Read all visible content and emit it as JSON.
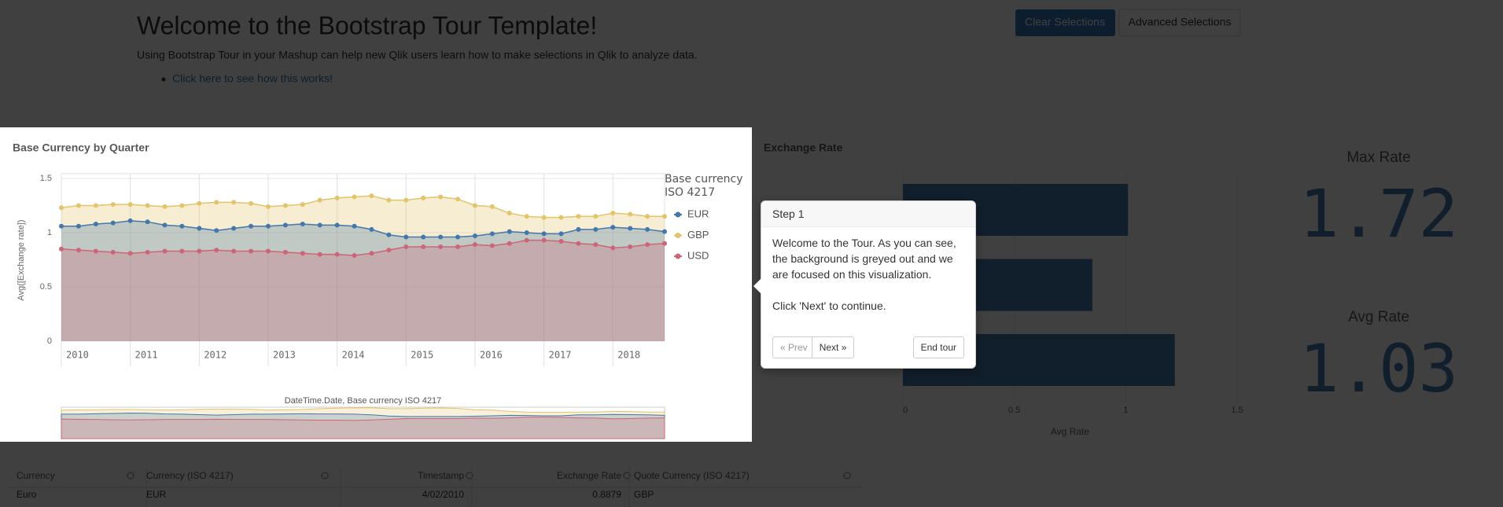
{
  "header": {
    "title": "Welcome to the Bootstrap Tour Template!",
    "intro": "Using Bootstrap Tour in your Mashup can help new Qlik users learn how to make selections in Qlik to analyze data.",
    "link": "Click here to see how this works!"
  },
  "buttons": [
    "Clear Selections",
    "Advanced Selections"
  ],
  "chart_data": [
    {
      "type": "area",
      "title": "Base Currency by Quarter",
      "y_label": "Avg([Exchange rate])",
      "legend_title": "Base currency ISO 4217",
      "navigator_label": "DateTime.Date, Base currency ISO 4217",
      "categories": [
        "2010",
        null,
        null,
        null,
        "2011",
        null,
        null,
        null,
        "2012",
        null,
        null,
        null,
        "2013",
        null,
        null,
        null,
        "2014",
        null,
        null,
        null,
        "2015",
        null,
        null,
        null,
        "2016",
        null,
        null,
        null,
        "2017",
        null,
        null,
        null,
        "2018",
        null,
        null,
        null
      ],
      "series": [
        {
          "name": "GBP",
          "color": "#e2c46a",
          "values": [
            1.23,
            1.25,
            1.25,
            1.26,
            1.26,
            1.25,
            1.24,
            1.25,
            1.27,
            1.28,
            1.28,
            1.27,
            1.24,
            1.25,
            1.26,
            1.3,
            1.32,
            1.33,
            1.34,
            1.3,
            1.3,
            1.32,
            1.33,
            1.31,
            1.25,
            1.24,
            1.18,
            1.15,
            1.14,
            1.14,
            1.15,
            1.15,
            1.18,
            1.17,
            1.15,
            1.15
          ]
        },
        {
          "name": "EUR",
          "color": "#4477aa",
          "values": [
            1.06,
            1.06,
            1.08,
            1.09,
            1.11,
            1.1,
            1.07,
            1.06,
            1.04,
            1.02,
            1.04,
            1.06,
            1.06,
            1.07,
            1.08,
            1.07,
            1.07,
            1.06,
            1.03,
            0.98,
            0.96,
            0.96,
            0.96,
            0.96,
            0.97,
            0.99,
            1.01,
            1.0,
            0.99,
            0.99,
            1.03,
            1.03,
            1.05,
            1.04,
            1.03,
            1.01
          ]
        },
        {
          "name": "USD",
          "color": "#cc6677",
          "values": [
            0.85,
            0.84,
            0.83,
            0.82,
            0.81,
            0.82,
            0.83,
            0.83,
            0.83,
            0.84,
            0.83,
            0.83,
            0.83,
            0.82,
            0.81,
            0.8,
            0.8,
            0.79,
            0.81,
            0.84,
            0.87,
            0.87,
            0.87,
            0.87,
            0.89,
            0.88,
            0.9,
            0.93,
            0.93,
            0.92,
            0.9,
            0.89,
            0.86,
            0.87,
            0.89,
            0.9
          ]
        }
      ],
      "legend_order": [
        1,
        0,
        2
      ],
      "ylim": [
        0,
        1.5
      ],
      "yticks": [
        0,
        0.5,
        1,
        1.5
      ],
      "grid": true
    },
    {
      "type": "hbar",
      "title": "Exchange Rate",
      "x_label": "Avg Rate",
      "color": "#4477aa",
      "values": [
        1.01,
        0.85,
        1.22
      ],
      "xlim": [
        0,
        1.5
      ],
      "xticks": [
        0,
        0.5,
        1,
        1.5
      ],
      "grid": true
    }
  ],
  "kpis": [
    {
      "label": "Max Rate",
      "value": 1.72
    },
    {
      "label": "Avg Rate",
      "value": 1.03
    }
  ],
  "tour": {
    "step": "Step 1",
    "text": "Welcome to the Tour. As you can see, the background is greyed out and we are focused on this visualization.",
    "hint": "Click 'Next' to continue.",
    "prev": "« Prev",
    "next": "Next »",
    "end": "End tour"
  },
  "table": {
    "columns": [
      "Currency",
      "Currency (ISO 4217)",
      "Timestamp",
      "Exchange Rate",
      "Quote Currency (ISO 4217)"
    ],
    "rows": [
      [
        "Euro",
        "EUR",
        "4/02/2010",
        0.8879,
        "GBP"
      ]
    ]
  }
}
